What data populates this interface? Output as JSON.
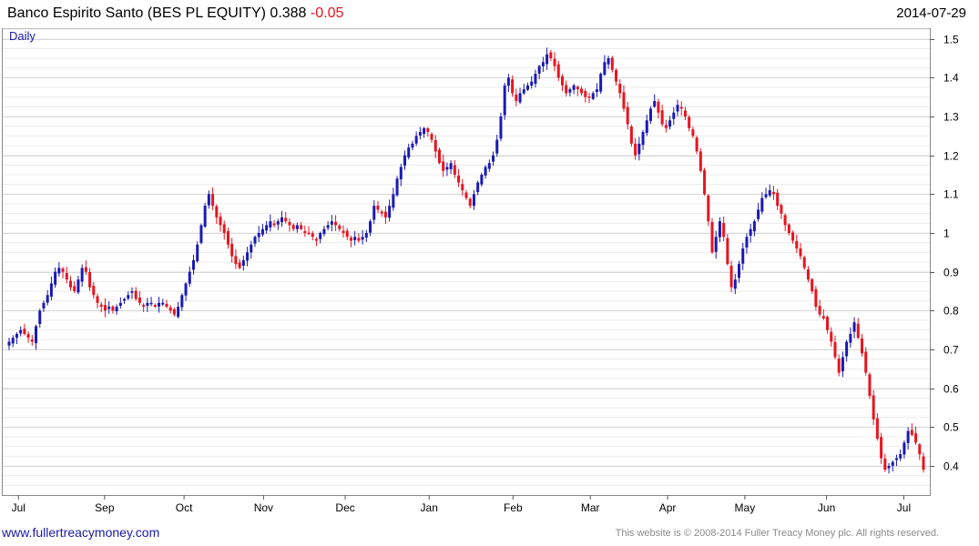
{
  "header": {
    "title": "Banco Espirito Santo (BES PL EQUITY) 0.388",
    "change": "-0.05",
    "date": "2014-07-29",
    "period": "Daily"
  },
  "footer": {
    "site": "www.fullertreacymoney.com",
    "copyright": "This website is © 2008-2014 Fuller Treacy Money plc. All rights reserved."
  },
  "colors": {
    "up": "#1a1ab4",
    "down": "#e8141e",
    "grid": "#d8d8d8",
    "frame": "#8a8a8a"
  },
  "chart_data": {
    "type": "candlestick",
    "title": "Banco Espirito Santo (BES PL EQUITY) 0.388 -0.05",
    "ylim": [
      0.325,
      1.525
    ],
    "y_ticks": [
      0.4,
      0.5,
      0.6,
      0.7,
      0.8,
      0.9,
      1,
      1.1,
      1.2,
      1.3,
      1.4,
      1.5
    ],
    "y_tick_labels": [
      "0.4",
      "0.5",
      "0.6",
      "0.7",
      "0.8",
      "0.9",
      "1",
      "1.1",
      "1.2",
      "1.3",
      "1.4",
      "1.5"
    ],
    "x_labels": [
      "Jul",
      "Sep",
      "Oct",
      "Nov",
      "Dec",
      "Jan",
      "Feb",
      "Mar",
      "Apr",
      "May",
      "Jun",
      "Jul"
    ],
    "grid": true,
    "approx_daily_closes": [
      0.72,
      0.73,
      0.74,
      0.75,
      0.74,
      0.73,
      0.72,
      0.76,
      0.8,
      0.82,
      0.84,
      0.87,
      0.9,
      0.91,
      0.9,
      0.88,
      0.86,
      0.85,
      0.88,
      0.91,
      0.9,
      0.86,
      0.84,
      0.82,
      0.81,
      0.8,
      0.81,
      0.8,
      0.81,
      0.82,
      0.83,
      0.84,
      0.85,
      0.83,
      0.82,
      0.81,
      0.82,
      0.82,
      0.81,
      0.82,
      0.82,
      0.81,
      0.8,
      0.79,
      0.81,
      0.84,
      0.87,
      0.9,
      0.93,
      0.97,
      1.02,
      1.07,
      1.1,
      1.07,
      1.04,
      1.02,
      1.0,
      0.97,
      0.94,
      0.92,
      0.91,
      0.93,
      0.95,
      0.97,
      0.99,
      1.0,
      1.01,
      1.02,
      1.03,
      1.02,
      1.03,
      1.04,
      1.03,
      1.02,
      1.01,
      1.02,
      1.01,
      1.0,
      1.0,
      0.99,
      0.98,
      1.0,
      1.01,
      1.02,
      1.03,
      1.02,
      1.01,
      1.0,
      0.99,
      0.98,
      0.99,
      0.98,
      0.99,
      1.0,
      1.03,
      1.07,
      1.06,
      1.05,
      1.04,
      1.07,
      1.1,
      1.14,
      1.17,
      1.2,
      1.22,
      1.23,
      1.25,
      1.26,
      1.27,
      1.26,
      1.24,
      1.21,
      1.18,
      1.16,
      1.17,
      1.18,
      1.15,
      1.13,
      1.11,
      1.09,
      1.07,
      1.1,
      1.13,
      1.15,
      1.17,
      1.18,
      1.2,
      1.24,
      1.3,
      1.38,
      1.4,
      1.36,
      1.34,
      1.36,
      1.37,
      1.38,
      1.39,
      1.41,
      1.43,
      1.44,
      1.46,
      1.45,
      1.43,
      1.4,
      1.38,
      1.36,
      1.37,
      1.38,
      1.37,
      1.36,
      1.35,
      1.35,
      1.36,
      1.37,
      1.41,
      1.44,
      1.45,
      1.42,
      1.39,
      1.36,
      1.32,
      1.28,
      1.23,
      1.2,
      1.23,
      1.26,
      1.29,
      1.32,
      1.34,
      1.31,
      1.28,
      1.27,
      1.29,
      1.31,
      1.33,
      1.32,
      1.3,
      1.27,
      1.25,
      1.21,
      1.16,
      1.1,
      1.03,
      0.95,
      0.99,
      1.03,
      0.99,
      0.92,
      0.86,
      0.88,
      0.92,
      0.96,
      0.99,
      1.01,
      1.03,
      1.06,
      1.09,
      1.1,
      1.11,
      1.1,
      1.07,
      1.05,
      1.02,
      1.0,
      0.98,
      0.96,
      0.94,
      0.91,
      0.88,
      0.85,
      0.81,
      0.79,
      0.78,
      0.75,
      0.72,
      0.68,
      0.64,
      0.68,
      0.72,
      0.74,
      0.77,
      0.73,
      0.69,
      0.64,
      0.58,
      0.52,
      0.47,
      0.42,
      0.39,
      0.4,
      0.41,
      0.42,
      0.43,
      0.46,
      0.49,
      0.48,
      0.46,
      0.43,
      0.39
    ]
  }
}
